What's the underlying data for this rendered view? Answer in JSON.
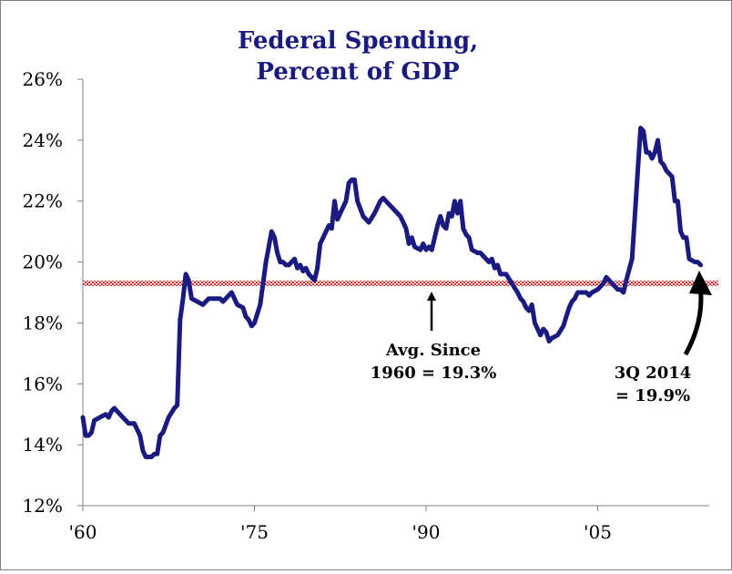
{
  "chart_data": {
    "type": "line",
    "title_lines": [
      "Federal Spending,",
      "Percent of GDP"
    ],
    "xlabel": "",
    "ylabel": "",
    "x_range": [
      1960,
      2014.75
    ],
    "ylim": [
      12,
      26
    ],
    "x_ticks": [
      {
        "year": 1960,
        "label": "'60"
      },
      {
        "year": 1975,
        "label": "'75"
      },
      {
        "year": 1990,
        "label": "'90"
      },
      {
        "year": 2005,
        "label": "'05"
      }
    ],
    "y_ticks": [
      {
        "value": 12,
        "label": "12%"
      },
      {
        "value": 14,
        "label": "14%"
      },
      {
        "value": 16,
        "label": "16%"
      },
      {
        "value": 18,
        "label": "18%"
      },
      {
        "value": 20,
        "label": "20%"
      },
      {
        "value": 22,
        "label": "22%"
      },
      {
        "value": 24,
        "label": "24%"
      },
      {
        "value": 26,
        "label": "26%"
      }
    ],
    "grid": false,
    "series": [
      {
        "color": "#1a1a80",
        "points": [
          [
            1960.0,
            14.9
          ],
          [
            1960.25,
            14.3
          ],
          [
            1960.5,
            14.3
          ],
          [
            1960.75,
            14.4
          ],
          [
            1961.0,
            14.8
          ],
          [
            1961.5,
            14.9
          ],
          [
            1962.0,
            15.0
          ],
          [
            1962.25,
            14.9
          ],
          [
            1962.5,
            15.1
          ],
          [
            1962.75,
            15.2
          ],
          [
            1963.0,
            15.1
          ],
          [
            1963.5,
            14.9
          ],
          [
            1964.0,
            14.7
          ],
          [
            1964.5,
            14.7
          ],
          [
            1965.0,
            14.3
          ],
          [
            1965.25,
            13.8
          ],
          [
            1965.5,
            13.6
          ],
          [
            1965.75,
            13.6
          ],
          [
            1966.0,
            13.6
          ],
          [
            1966.25,
            13.7
          ],
          [
            1966.5,
            13.7
          ],
          [
            1966.75,
            14.3
          ],
          [
            1967.0,
            14.4
          ],
          [
            1967.5,
            14.9
          ],
          [
            1968.0,
            15.2
          ],
          [
            1968.25,
            15.3
          ],
          [
            1968.5,
            18.1
          ],
          [
            1968.75,
            18.8
          ],
          [
            1969.0,
            19.6
          ],
          [
            1969.25,
            19.4
          ],
          [
            1969.5,
            18.8
          ],
          [
            1970.0,
            18.7
          ],
          [
            1970.5,
            18.6
          ],
          [
            1971.0,
            18.8
          ],
          [
            1971.5,
            18.8
          ],
          [
            1972.0,
            18.8
          ],
          [
            1972.25,
            18.7
          ],
          [
            1972.75,
            18.9
          ],
          [
            1973.0,
            19.0
          ],
          [
            1973.5,
            18.6
          ],
          [
            1974.0,
            18.5
          ],
          [
            1974.25,
            18.2
          ],
          [
            1974.5,
            18.1
          ],
          [
            1974.75,
            17.9
          ],
          [
            1975.0,
            18.0
          ],
          [
            1975.5,
            18.6
          ],
          [
            1976.0,
            20.0
          ],
          [
            1976.25,
            20.5
          ],
          [
            1976.5,
            21.0
          ],
          [
            1976.75,
            20.8
          ],
          [
            1977.0,
            20.3
          ],
          [
            1977.25,
            20.0
          ],
          [
            1977.5,
            20.0
          ],
          [
            1977.75,
            19.9
          ],
          [
            1978.0,
            19.9
          ],
          [
            1978.5,
            20.1
          ],
          [
            1978.75,
            19.8
          ],
          [
            1979.0,
            19.9
          ],
          [
            1979.25,
            19.7
          ],
          [
            1979.5,
            19.8
          ],
          [
            1979.75,
            19.6
          ],
          [
            1980.0,
            19.5
          ],
          [
            1980.25,
            19.4
          ],
          [
            1980.5,
            19.8
          ],
          [
            1980.75,
            20.6
          ],
          [
            1981.0,
            20.8
          ],
          [
            1981.5,
            21.2
          ],
          [
            1981.75,
            21.1
          ],
          [
            1982.0,
            22.0
          ],
          [
            1982.25,
            21.4
          ],
          [
            1982.5,
            21.6
          ],
          [
            1983.0,
            22.0
          ],
          [
            1983.25,
            22.6
          ],
          [
            1983.5,
            22.7
          ],
          [
            1983.75,
            22.7
          ],
          [
            1984.0,
            22.0
          ],
          [
            1984.5,
            21.5
          ],
          [
            1985.0,
            21.3
          ],
          [
            1985.5,
            21.6
          ],
          [
            1986.0,
            22.0
          ],
          [
            1986.25,
            22.1
          ],
          [
            1986.75,
            21.9
          ],
          [
            1987.0,
            21.8
          ],
          [
            1987.5,
            21.6
          ],
          [
            1987.75,
            21.5
          ],
          [
            1988.0,
            21.3
          ],
          [
            1988.25,
            21.1
          ],
          [
            1988.5,
            20.6
          ],
          [
            1988.75,
            20.8
          ],
          [
            1989.0,
            20.5
          ],
          [
            1989.5,
            20.4
          ],
          [
            1989.75,
            20.6
          ],
          [
            1990.0,
            20.4
          ],
          [
            1990.25,
            20.5
          ],
          [
            1990.5,
            20.4
          ],
          [
            1990.75,
            20.8
          ],
          [
            1991.0,
            21.2
          ],
          [
            1991.25,
            21.5
          ],
          [
            1991.5,
            21.2
          ],
          [
            1991.75,
            21.1
          ],
          [
            1992.0,
            21.6
          ],
          [
            1992.25,
            21.5
          ],
          [
            1992.5,
            22.0
          ],
          [
            1992.75,
            21.6
          ],
          [
            1993.0,
            22.0
          ],
          [
            1993.25,
            21.1
          ],
          [
            1993.5,
            20.9
          ],
          [
            1993.75,
            20.8
          ],
          [
            1994.0,
            20.4
          ],
          [
            1994.5,
            20.3
          ],
          [
            1994.75,
            20.3
          ],
          [
            1995.0,
            20.2
          ],
          [
            1995.5,
            20.0
          ],
          [
            1995.75,
            20.1
          ],
          [
            1996.0,
            19.8
          ],
          [
            1996.25,
            19.9
          ],
          [
            1996.5,
            19.6
          ],
          [
            1996.75,
            19.6
          ],
          [
            1997.0,
            19.6
          ],
          [
            1997.5,
            19.3
          ],
          [
            1998.0,
            19.0
          ],
          [
            1998.25,
            18.8
          ],
          [
            1998.5,
            18.7
          ],
          [
            1998.75,
            18.5
          ],
          [
            1999.0,
            18.4
          ],
          [
            1999.25,
            18.6
          ],
          [
            1999.5,
            18.0
          ],
          [
            2000.0,
            17.6
          ],
          [
            2000.25,
            17.8
          ],
          [
            2000.5,
            17.7
          ],
          [
            2000.75,
            17.4
          ],
          [
            2001.0,
            17.5
          ],
          [
            2001.5,
            17.6
          ],
          [
            2002.0,
            17.9
          ],
          [
            2002.25,
            18.2
          ],
          [
            2002.5,
            18.5
          ],
          [
            2002.75,
            18.7
          ],
          [
            2003.0,
            18.8
          ],
          [
            2003.25,
            19.0
          ],
          [
            2003.5,
            19.0
          ],
          [
            2004.0,
            19.0
          ],
          [
            2004.25,
            18.9
          ],
          [
            2004.5,
            19.0
          ],
          [
            2005.0,
            19.1
          ],
          [
            2005.5,
            19.3
          ],
          [
            2005.75,
            19.5
          ],
          [
            2006.0,
            19.4
          ],
          [
            2006.25,
            19.3
          ],
          [
            2006.5,
            19.2
          ],
          [
            2006.75,
            19.1
          ],
          [
            2007.0,
            19.1
          ],
          [
            2007.25,
            19.0
          ],
          [
            2007.5,
            19.4
          ],
          [
            2008.0,
            20.1
          ],
          [
            2008.25,
            21.5
          ],
          [
            2008.5,
            23.0
          ],
          [
            2008.75,
            24.4
          ],
          [
            2009.0,
            24.3
          ],
          [
            2009.25,
            23.6
          ],
          [
            2009.5,
            23.6
          ],
          [
            2009.75,
            23.4
          ],
          [
            2010.0,
            23.6
          ],
          [
            2010.25,
            24.0
          ],
          [
            2010.5,
            23.3
          ],
          [
            2010.75,
            23.2
          ],
          [
            2011.0,
            23.0
          ],
          [
            2011.25,
            22.9
          ],
          [
            2011.5,
            22.8
          ],
          [
            2011.75,
            22.0
          ],
          [
            2012.0,
            22.0
          ],
          [
            2012.25,
            21.0
          ],
          [
            2012.5,
            20.8
          ],
          [
            2012.75,
            20.8
          ],
          [
            2013.0,
            20.1
          ],
          [
            2013.5,
            20.0
          ],
          [
            2013.75,
            20.0
          ],
          [
            2014.0,
            19.9
          ]
        ]
      }
    ],
    "average_line": {
      "value": 19.3,
      "color": "#e03030"
    },
    "annotations": [
      {
        "lines": [
          "Avg. Since",
          "1960 = 19.3%"
        ]
      },
      {
        "lines": [
          "3Q 2014",
          "= 19.9%"
        ]
      }
    ]
  }
}
